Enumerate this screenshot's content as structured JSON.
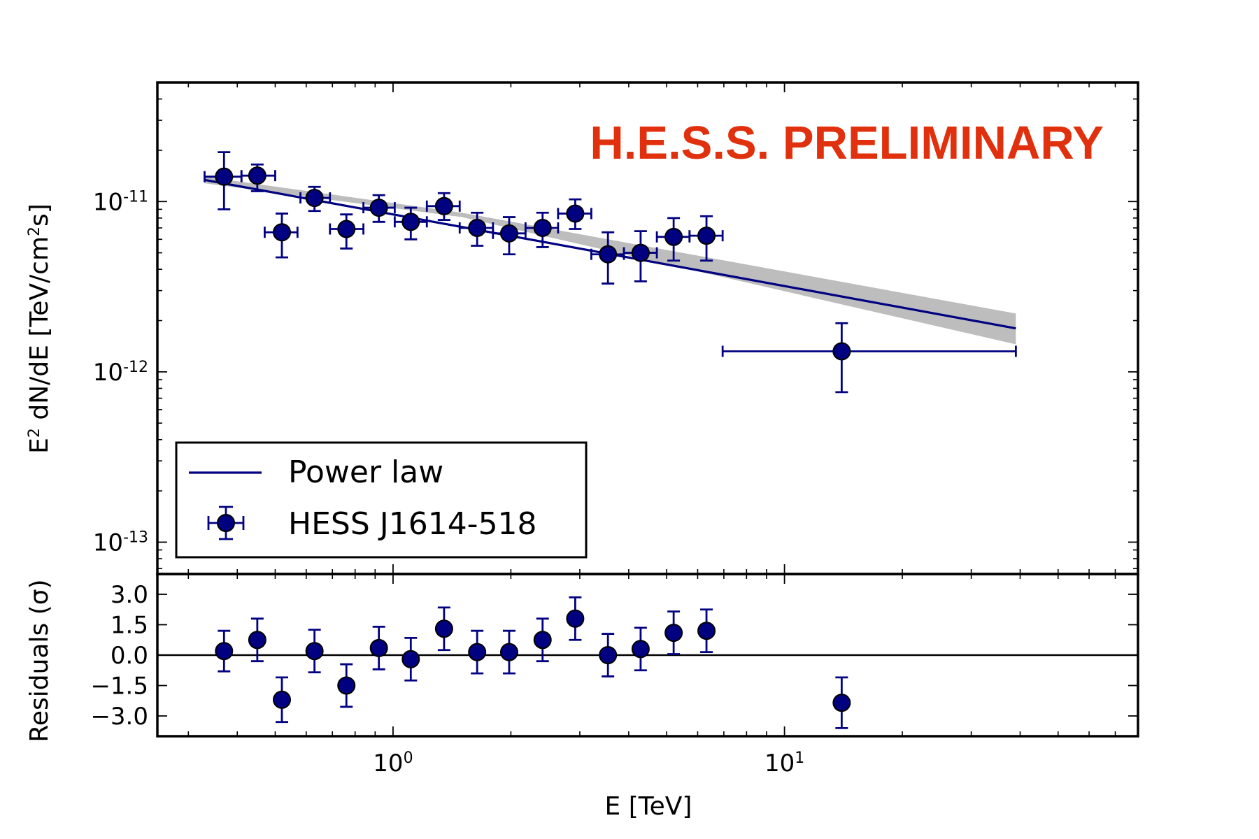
{
  "chart_data": {
    "type": "scatter",
    "watermark": "H.E.S.S. PRELIMINARY",
    "xlabel": "E [TeV]",
    "xscale": "log",
    "xlim": [
      0.25,
      80
    ],
    "x_ticks": [
      {
        "value": 1,
        "base": "10",
        "exp": "0"
      },
      {
        "value": 10,
        "base": "10",
        "exp": "1"
      }
    ],
    "top_panel": {
      "ylabel_parts": {
        "a": "E",
        "a_sup": "2",
        "b": " dN/dE [TeV/cm",
        "b_sup": "2",
        "c": "s]"
      },
      "yscale": "log",
      "ylim": [
        6.5e-14,
        5e-11
      ],
      "y_ticks": [
        {
          "value": 1e-11,
          "base": "10",
          "exp": "-11"
        },
        {
          "value": 1e-12,
          "base": "10",
          "exp": "-12"
        },
        {
          "value": 1e-13,
          "base": "10",
          "exp": "-13"
        }
      ],
      "series": [
        {
          "name": "HESS J1614-518",
          "color": "#000080",
          "points": [
            {
              "x": 0.37,
              "y": 1.4e-11,
              "x_lo": 0.33,
              "x_hi": 0.41,
              "y_lo": 9e-12,
              "y_hi": 1.95e-11
            },
            {
              "x": 0.45,
              "y": 1.42e-11,
              "x_lo": 0.41,
              "x_hi": 0.5,
              "y_lo": 1.15e-11,
              "y_hi": 1.65e-11
            },
            {
              "x": 0.52,
              "y": 6.6e-12,
              "x_lo": 0.47,
              "x_hi": 0.57,
              "y_lo": 4.7e-12,
              "y_hi": 8.5e-12
            },
            {
              "x": 0.63,
              "y": 1.05e-11,
              "x_lo": 0.58,
              "x_hi": 0.69,
              "y_lo": 8.8e-12,
              "y_hi": 1.22e-11
            },
            {
              "x": 0.76,
              "y": 6.9e-12,
              "x_lo": 0.69,
              "x_hi": 0.84,
              "y_lo": 5.3e-12,
              "y_hi": 8.4e-12
            },
            {
              "x": 0.92,
              "y": 9.2e-12,
              "x_lo": 0.84,
              "x_hi": 1.01,
              "y_lo": 7.6e-12,
              "y_hi": 1.09e-11
            },
            {
              "x": 1.11,
              "y": 7.6e-12,
              "x_lo": 1.01,
              "x_hi": 1.22,
              "y_lo": 6e-12,
              "y_hi": 9.2e-12
            },
            {
              "x": 1.35,
              "y": 9.4e-12,
              "x_lo": 1.22,
              "x_hi": 1.48,
              "y_lo": 7.8e-12,
              "y_hi": 1.12e-11
            },
            {
              "x": 1.64,
              "y": 7e-12,
              "x_lo": 1.48,
              "x_hi": 1.8,
              "y_lo": 5.5e-12,
              "y_hi": 8.6e-12
            },
            {
              "x": 1.98,
              "y": 6.5e-12,
              "x_lo": 1.8,
              "x_hi": 2.18,
              "y_lo": 4.9e-12,
              "y_hi": 8.1e-12
            },
            {
              "x": 2.41,
              "y": 7e-12,
              "x_lo": 2.18,
              "x_hi": 2.64,
              "y_lo": 5.4e-12,
              "y_hi": 8.6e-12
            },
            {
              "x": 2.92,
              "y": 8.5e-12,
              "x_lo": 2.64,
              "x_hi": 3.21,
              "y_lo": 6.9e-12,
              "y_hi": 1.03e-11
            },
            {
              "x": 3.54,
              "y": 4.9e-12,
              "x_lo": 3.21,
              "x_hi": 3.89,
              "y_lo": 3.3e-12,
              "y_hi": 6.6e-12
            },
            {
              "x": 4.29,
              "y": 5e-12,
              "x_lo": 3.89,
              "x_hi": 4.72,
              "y_lo": 3.4e-12,
              "y_hi": 6.7e-12
            },
            {
              "x": 5.21,
              "y": 6.2e-12,
              "x_lo": 4.72,
              "x_hi": 5.72,
              "y_lo": 4.5e-12,
              "y_hi": 8e-12
            },
            {
              "x": 6.32,
              "y": 6.3e-12,
              "x_lo": 5.72,
              "x_hi": 6.95,
              "y_lo": 4.5e-12,
              "y_hi": 8.2e-12
            },
            {
              "x": 14.0,
              "y": 1.32e-12,
              "x_lo": 6.95,
              "x_hi": 39.0,
              "y_lo": 7.6e-13,
              "y_hi": 1.93e-12
            }
          ]
        }
      ],
      "fit": {
        "name": "Power law",
        "color": "#000080",
        "x_range": [
          0.33,
          39.0
        ],
        "y_start": 1.34e-11,
        "y_end": 1.8e-12,
        "band_start": [
          1.28e-11,
          1.4e-11
        ],
        "band_pivot_x": 1.5,
        "band_pivot": [
          8.1e-12,
          8.6e-12
        ],
        "band_end": [
          1.45e-12,
          2.2e-12
        ],
        "band_color": "#bdbdbd"
      },
      "legend": {
        "location": "lower-left",
        "entries": [
          "Power law",
          "HESS J1614-518"
        ]
      }
    },
    "bottom_panel": {
      "ylabel": "Residuals (σ)",
      "ylim": [
        -4.0,
        4.0
      ],
      "y_ticks": [
        "3.0",
        "1.5",
        "0.0",
        "−1.5",
        "−3.0"
      ],
      "y_tick_values": [
        3.0,
        1.5,
        0.0,
        -1.5,
        -3.0
      ],
      "residuals": [
        {
          "x": 0.37,
          "y": 0.2,
          "err": 1.0
        },
        {
          "x": 0.45,
          "y": 0.75,
          "err": 1.05
        },
        {
          "x": 0.52,
          "y": -2.2,
          "err": 1.1
        },
        {
          "x": 0.63,
          "y": 0.2,
          "err": 1.05
        },
        {
          "x": 0.76,
          "y": -1.5,
          "err": 1.05
        },
        {
          "x": 0.92,
          "y": 0.35,
          "err": 1.05
        },
        {
          "x": 1.11,
          "y": -0.2,
          "err": 1.05
        },
        {
          "x": 1.35,
          "y": 1.3,
          "err": 1.05
        },
        {
          "x": 1.64,
          "y": 0.15,
          "err": 1.05
        },
        {
          "x": 1.98,
          "y": 0.15,
          "err": 1.05
        },
        {
          "x": 2.41,
          "y": 0.75,
          "err": 1.05
        },
        {
          "x": 2.92,
          "y": 1.8,
          "err": 1.05
        },
        {
          "x": 3.54,
          "y": 0.0,
          "err": 1.05
        },
        {
          "x": 4.29,
          "y": 0.3,
          "err": 1.05
        },
        {
          "x": 5.21,
          "y": 1.1,
          "err": 1.05
        },
        {
          "x": 6.32,
          "y": 1.2,
          "err": 1.05
        },
        {
          "x": 14.0,
          "y": -2.35,
          "err": 1.25
        }
      ]
    }
  }
}
